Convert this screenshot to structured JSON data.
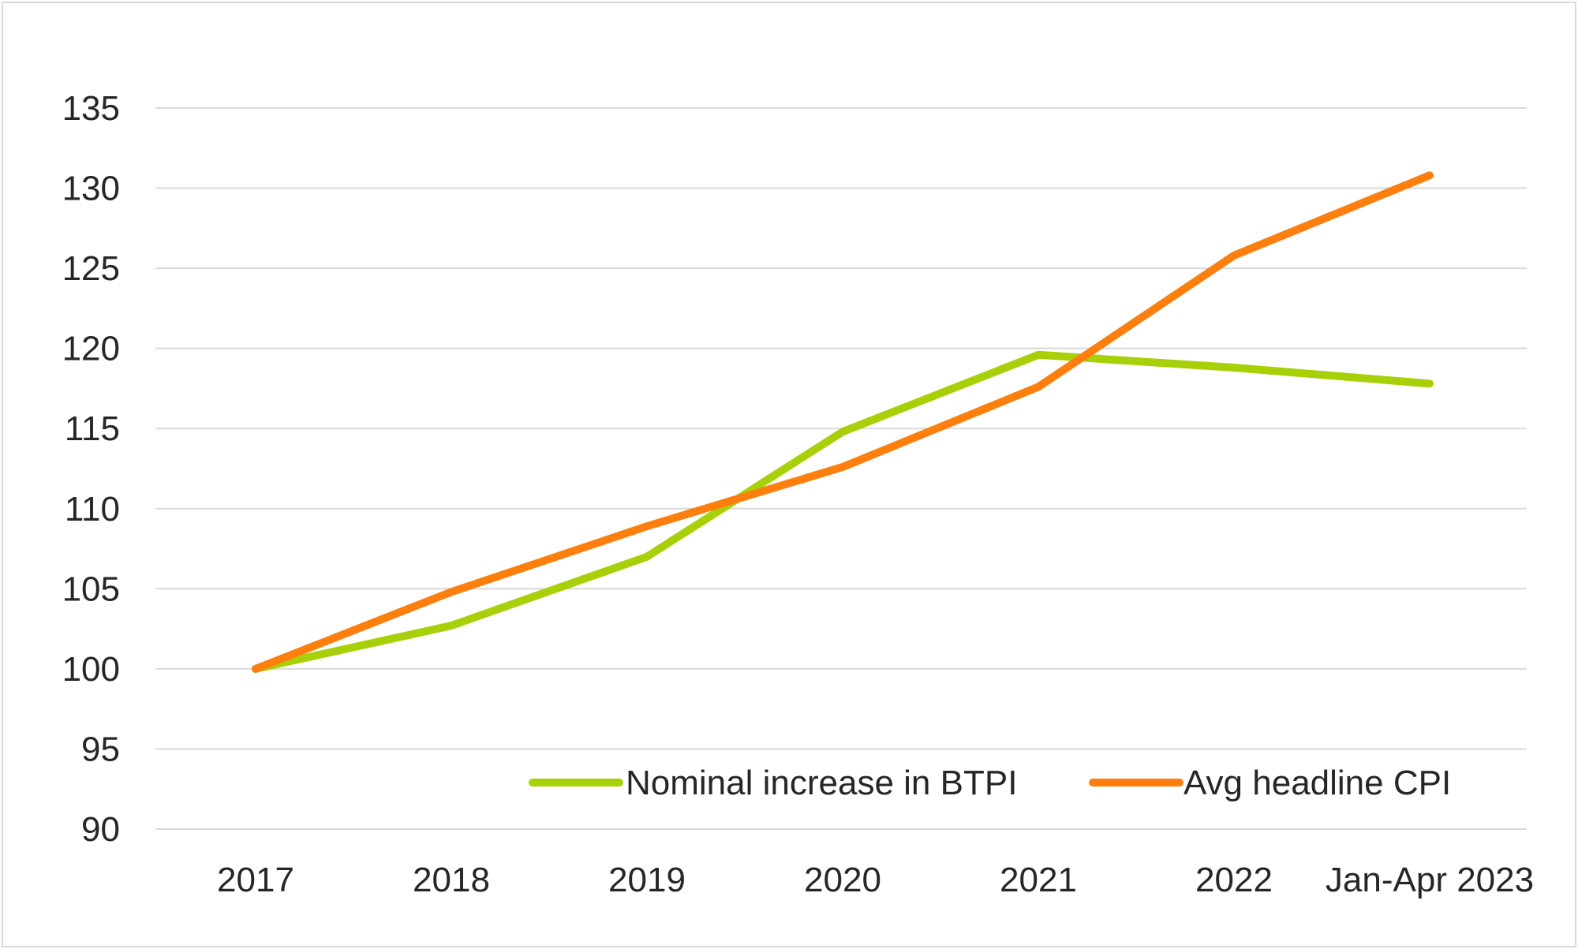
{
  "chart_data": {
    "type": "line",
    "title": "",
    "xlabel": "",
    "ylabel": "",
    "categories": [
      "2017",
      "2018",
      "2019",
      "2020",
      "2021",
      "2022",
      "Jan-Apr 2023"
    ],
    "ylim": [
      90,
      135
    ],
    "yticks": [
      90,
      95,
      100,
      105,
      110,
      115,
      120,
      125,
      130,
      135
    ],
    "grid": true,
    "legend_position": "bottom-right",
    "series": [
      {
        "name": "Nominal increase in BTPI",
        "color": "#a8d008",
        "values": [
          100,
          102.7,
          107,
          114.8,
          119.6,
          118.8,
          117.8
        ]
      },
      {
        "name": "Avg headline CPI",
        "color": "#ff7f0e",
        "values": [
          100,
          104.8,
          108.9,
          112.6,
          117.6,
          125.8,
          130.8
        ]
      }
    ]
  }
}
